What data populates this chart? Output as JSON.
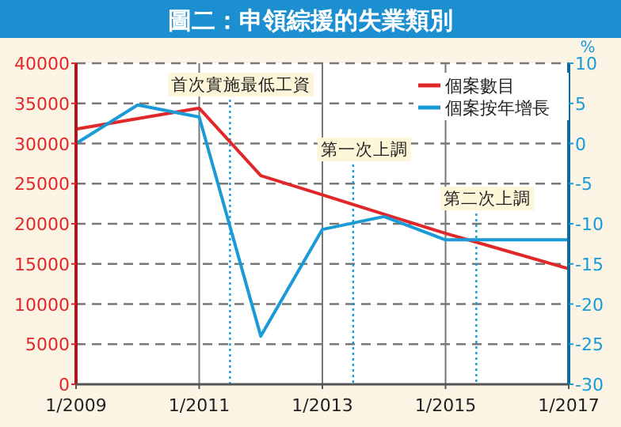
{
  "chart_data": {
    "type": "line",
    "title": "圖二：申領綜援的失業類別",
    "y2label": "%",
    "x": [
      "2009-01",
      "2010-01",
      "2011-01",
      "2012-01",
      "2013-01",
      "2014-01",
      "2015-01",
      "2016-01",
      "2017-01"
    ],
    "series": [
      {
        "name": "個案數目",
        "color": "#e0282b",
        "values": [
          31800,
          33100,
          34400,
          26000,
          23600,
          21200,
          18800,
          16600,
          14400
        ]
      },
      {
        "name": "個案按年增長",
        "color": "#1a9ad6",
        "axis": "y2",
        "values": [
          0,
          4.8,
          3.3,
          -24,
          -10.7,
          -9.1,
          -12,
          -12,
          -12
        ]
      }
    ],
    "xlim": [
      "2009-01",
      "2017-01"
    ],
    "xticks": [
      {
        "value": "2009-01",
        "label": "1/2009"
      },
      {
        "value": "2011-01",
        "label": "1/2011"
      },
      {
        "value": "2013-01",
        "label": "1/2013"
      },
      {
        "value": "2015-01",
        "label": "1/2015"
      },
      {
        "value": "2017-01",
        "label": "1/2017"
      }
    ],
    "ylim": [
      0,
      40000
    ],
    "yticks": [
      0,
      5000,
      10000,
      15000,
      20000,
      25000,
      30000,
      35000,
      40000
    ],
    "y2lim": [
      -30,
      10
    ],
    "y2ticks": [
      -30,
      -25,
      -20,
      -15,
      -10,
      -5,
      0,
      5,
      10
    ],
    "grid": true,
    "legend": "top right",
    "ref_lines": [
      {
        "axis": "x",
        "value": "2011-07",
        "label": "首次實施最低工資",
        "color": "#1a9ad6",
        "line_style": "dotted"
      },
      {
        "axis": "x",
        "value": "2013-07",
        "label": "第一次上調",
        "color": "#1a9ad6",
        "line_style": "dotted"
      },
      {
        "axis": "x",
        "value": "2015-07",
        "label": "第二次上調",
        "color": "#1a9ad6",
        "line_style": "dotted"
      }
    ]
  }
}
